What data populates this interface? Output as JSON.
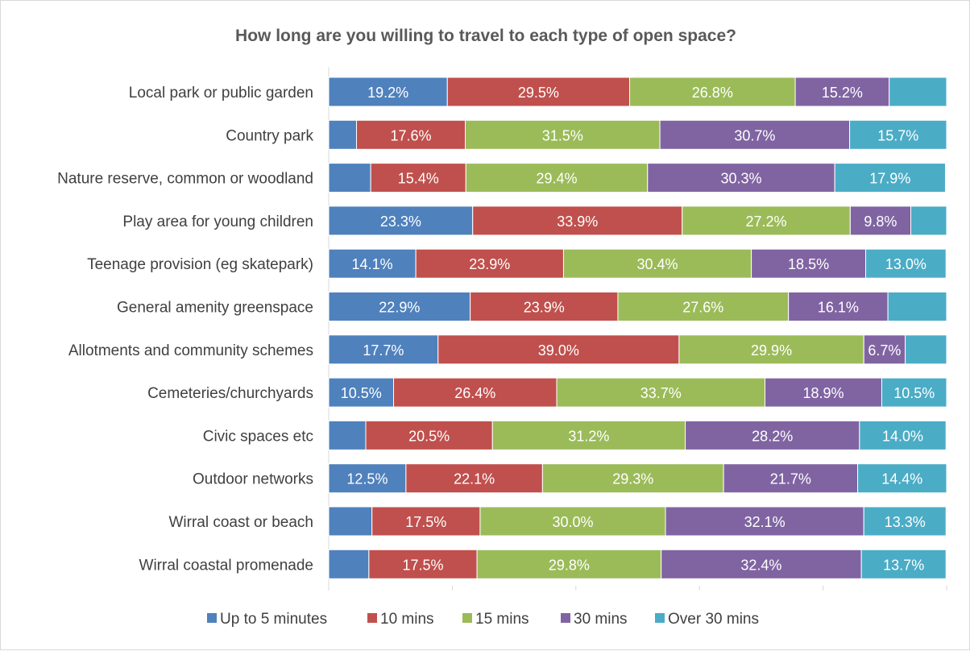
{
  "chart_data": {
    "type": "bar",
    "orientation": "horizontal",
    "stacked": "percent",
    "title": "How long are you willing to travel to each type of open space?",
    "xlabel": "",
    "ylabel": "",
    "xlim": [
      0,
      100
    ],
    "grid": false,
    "legend_position": "bottom",
    "categories": [
      "Local park or public garden",
      "Country park",
      "Nature reserve, common or woodland",
      "Play area for young children",
      "Teenage provision (eg skatepark)",
      "General amenity greenspace",
      "Allotments and community schemes",
      "Cemeteries/churchyards",
      "Civic spaces etc",
      "Outdoor networks",
      "Wirral coast or beach",
      "Wirral coastal promenade"
    ],
    "series": [
      {
        "name": "Up to 5 minutes",
        "color": "#4f81bd",
        "values": [
          19.2,
          4.5,
          6.8,
          23.3,
          14.1,
          22.9,
          17.7,
          10.5,
          6.0,
          12.5,
          7.0,
          6.5
        ],
        "labels": [
          "19.2%",
          "",
          "",
          "23.3%",
          "14.1%",
          "22.9%",
          "17.7%",
          "10.5%",
          "",
          "12.5%",
          "",
          ""
        ]
      },
      {
        "name": "10 mins",
        "color": "#c0504d",
        "values": [
          29.5,
          17.6,
          15.4,
          33.9,
          23.9,
          23.9,
          39.0,
          26.4,
          20.5,
          22.1,
          17.5,
          17.5
        ],
        "labels": [
          "29.5%",
          "17.6%",
          "15.4%",
          "33.9%",
          "23.9%",
          "23.9%",
          "39.0%",
          "26.4%",
          "20.5%",
          "22.1%",
          "17.5%",
          "17.5%"
        ]
      },
      {
        "name": "15 mins",
        "color": "#9bbb59",
        "values": [
          26.8,
          31.5,
          29.4,
          27.2,
          30.4,
          27.6,
          29.9,
          33.7,
          31.2,
          29.3,
          30.0,
          29.8
        ],
        "labels": [
          "26.8%",
          "31.5%",
          "29.4%",
          "27.2%",
          "30.4%",
          "27.6%",
          "29.9%",
          "33.7%",
          "31.2%",
          "29.3%",
          "30.0%",
          "29.8%"
        ]
      },
      {
        "name": "30 mins",
        "color": "#8064a2",
        "values": [
          15.2,
          30.7,
          30.3,
          9.8,
          18.5,
          16.1,
          6.7,
          18.9,
          28.2,
          21.7,
          32.1,
          32.4
        ],
        "labels": [
          "15.2%",
          "30.7%",
          "30.3%",
          "9.8%",
          "18.5%",
          "16.1%",
          "6.7%",
          "18.9%",
          "28.2%",
          "21.7%",
          "32.1%",
          "32.4%"
        ]
      },
      {
        "name": "Over 30 mins",
        "color": "#4bacc6",
        "values": [
          9.3,
          15.7,
          17.9,
          5.8,
          13.0,
          9.5,
          6.7,
          10.5,
          14.0,
          14.4,
          13.3,
          13.7
        ],
        "labels": [
          "",
          "15.7%",
          "17.9%",
          "",
          "13.0%",
          "",
          "",
          "10.5%",
          "14.0%",
          "14.4%",
          "13.3%",
          "13.7%"
        ]
      }
    ]
  }
}
